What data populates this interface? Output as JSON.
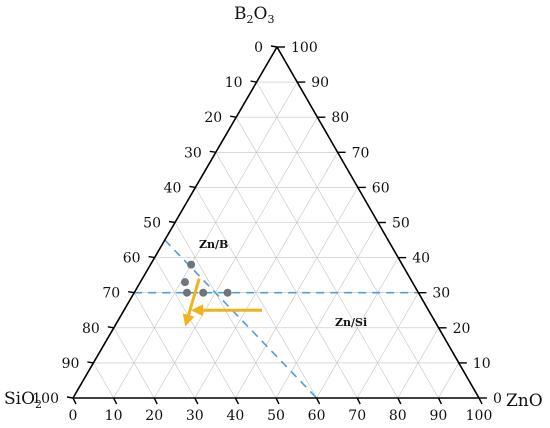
{
  "chart_data": {
    "type": "ternary",
    "axes": {
      "top": {
        "label_main": "B",
        "label_sub1": "2",
        "label_mid": "O",
        "label_sub2": "3",
        "min": 0,
        "max": 100
      },
      "left": {
        "label_main": "SiO",
        "label_sub1": "2",
        "min": 0,
        "max": 100
      },
      "right": {
        "label_main": "ZnO",
        "min": 0,
        "max": 100
      }
    },
    "ticks": {
      "left_edge": [
        "0",
        "10",
        "20",
        "30",
        "40",
        "50",
        "60",
        "70",
        "80",
        "90",
        "100"
      ],
      "right_edge": [
        "100",
        "90",
        "80",
        "70",
        "60",
        "50",
        "40",
        "30",
        "20",
        "10",
        "0"
      ],
      "bottom_edge": [
        "0",
        "10",
        "20",
        "30",
        "40",
        "50",
        "60",
        "70",
        "80",
        "90",
        "100"
      ]
    },
    "grid": true,
    "grid_step": 10,
    "series": [
      {
        "points": [
          {
            "SiO2": 52,
            "B2O3": 38,
            "ZnO": 10
          },
          {
            "SiO2": 56,
            "B2O3": 33,
            "ZnO": 11
          },
          {
            "SiO2": 57,
            "B2O3": 30,
            "ZnO": 13
          },
          {
            "SiO2": 53,
            "B2O3": 30,
            "ZnO": 17
          },
          {
            "SiO2": 47,
            "B2O3": 30,
            "ZnO": 23
          }
        ]
      }
    ],
    "reference_lines": [
      {
        "style": "dashed",
        "color": "#4f9fd6",
        "from": {
          "SiO2": 55,
          "B2O3": 45,
          "ZnO": 0
        },
        "to": {
          "SiO2": 40,
          "B2O3": 0,
          "ZnO": 60
        }
      },
      {
        "style": "dashed",
        "color": "#4f9fd6",
        "from": {
          "SiO2": 70,
          "B2O3": 30,
          "ZnO": 0
        },
        "to": {
          "SiO2": 0,
          "B2O3": 30,
          "ZnO": 70
        }
      }
    ],
    "annotations": [
      {
        "text": "Zn/B",
        "arrow_from": {
          "SiO2": 52,
          "B2O3": 34,
          "ZnO": 14
        },
        "arrow_to": {
          "SiO2": 61,
          "B2O3": 22,
          "ZnO": 17
        },
        "color": "#f2b21c"
      },
      {
        "text": "Zn/Si",
        "arrow_from": {
          "SiO2": 41,
          "B2O3": 25,
          "ZnO": 34
        },
        "arrow_to": {
          "SiO2": 57,
          "B2O3": 25,
          "ZnO": 18
        },
        "color": "#f2b21c"
      }
    ],
    "colors": {
      "points": "#6e757d",
      "reference_lines": "#4f9fd6",
      "arrows": "#f2b21c",
      "grid": "#c4c4c4",
      "axes": "#000000"
    }
  }
}
